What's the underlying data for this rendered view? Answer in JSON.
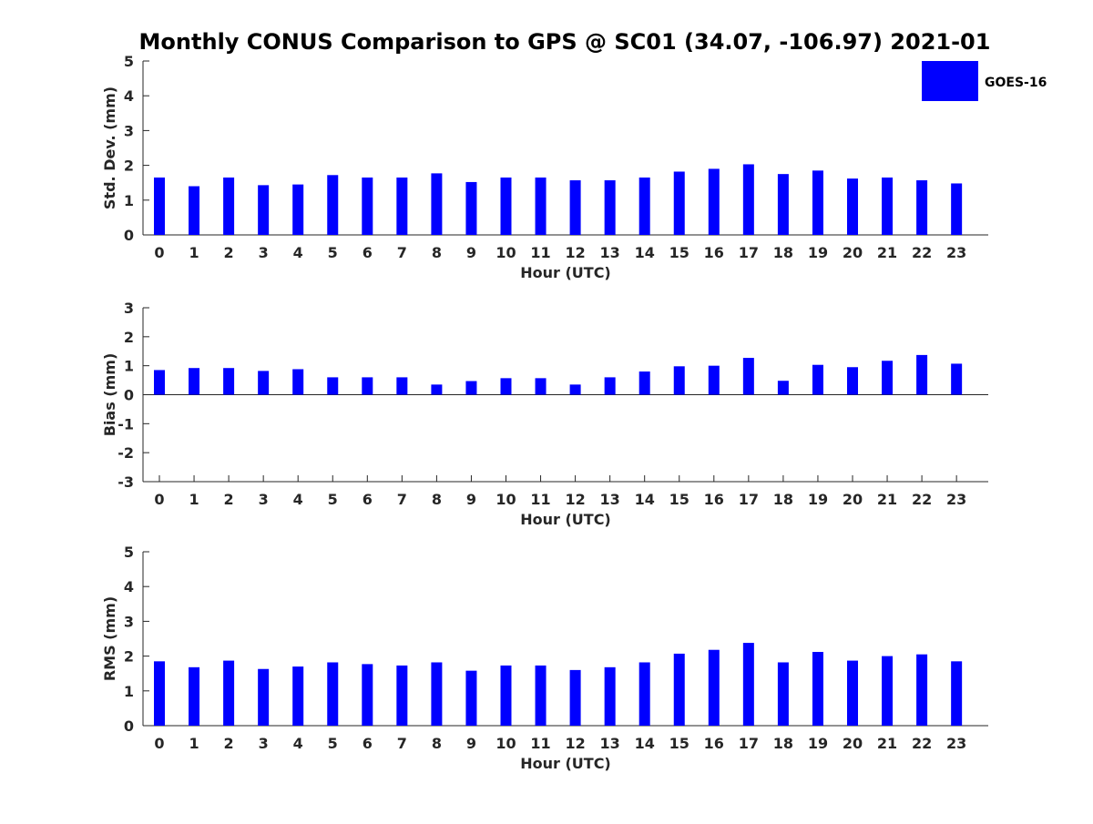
{
  "title": "Monthly CONUS Comparison to GPS @ SC01 (34.07, -106.97) 2021-01",
  "legend": {
    "label": "GOES-16",
    "placement": "top-right",
    "color": "#0000ff"
  },
  "chart_data": [
    {
      "type": "bar",
      "ylabel": "Std. Dev. (mm)",
      "xlabel": "Hour (UTC)",
      "ylim": [
        0,
        5
      ],
      "yticks": [
        "0",
        "1",
        "2",
        "3",
        "4",
        "5"
      ],
      "categories": [
        "0",
        "1",
        "2",
        "3",
        "4",
        "5",
        "6",
        "7",
        "8",
        "9",
        "10",
        "11",
        "12",
        "13",
        "14",
        "15",
        "16",
        "17",
        "18",
        "19",
        "20",
        "21",
        "22",
        "23"
      ],
      "series": [
        {
          "name": "GOES-16",
          "color": "#0000ff",
          "values": [
            1.65,
            1.4,
            1.65,
            1.43,
            1.45,
            1.72,
            1.65,
            1.65,
            1.77,
            1.52,
            1.65,
            1.65,
            1.57,
            1.57,
            1.65,
            1.82,
            1.9,
            2.03,
            1.75,
            1.85,
            1.62,
            1.65,
            1.57,
            1.48
          ]
        }
      ]
    },
    {
      "type": "bar",
      "ylabel": "Bias (mm)",
      "xlabel": "Hour (UTC)",
      "ylim": [
        -3,
        3
      ],
      "yticks": [
        "-3",
        "-2",
        "-1",
        "0",
        "1",
        "2",
        "3"
      ],
      "categories": [
        "0",
        "1",
        "2",
        "3",
        "4",
        "5",
        "6",
        "7",
        "8",
        "9",
        "10",
        "11",
        "12",
        "13",
        "14",
        "15",
        "16",
        "17",
        "18",
        "19",
        "20",
        "21",
        "22",
        "23"
      ],
      "series": [
        {
          "name": "GOES-16",
          "color": "#0000ff",
          "values": [
            0.85,
            0.92,
            0.92,
            0.82,
            0.88,
            0.6,
            0.6,
            0.6,
            0.35,
            0.47,
            0.57,
            0.57,
            0.35,
            0.6,
            0.8,
            0.98,
            1.0,
            1.27,
            0.48,
            1.03,
            0.95,
            1.17,
            1.37,
            1.07
          ]
        }
      ]
    },
    {
      "type": "bar",
      "ylabel": "RMS (mm)",
      "xlabel": "Hour (UTC)",
      "ylim": [
        0,
        5
      ],
      "yticks": [
        "0",
        "1",
        "2",
        "3",
        "4",
        "5"
      ],
      "categories": [
        "0",
        "1",
        "2",
        "3",
        "4",
        "5",
        "6",
        "7",
        "8",
        "9",
        "10",
        "11",
        "12",
        "13",
        "14",
        "15",
        "16",
        "17",
        "18",
        "19",
        "20",
        "21",
        "22",
        "23"
      ],
      "series": [
        {
          "name": "GOES-16",
          "color": "#0000ff",
          "values": [
            1.85,
            1.68,
            1.87,
            1.63,
            1.7,
            1.82,
            1.77,
            1.73,
            1.82,
            1.58,
            1.73,
            1.73,
            1.6,
            1.68,
            1.82,
            2.07,
            2.18,
            2.38,
            1.82,
            2.12,
            1.87,
            2.0,
            2.05,
            1.85
          ]
        }
      ]
    }
  ]
}
